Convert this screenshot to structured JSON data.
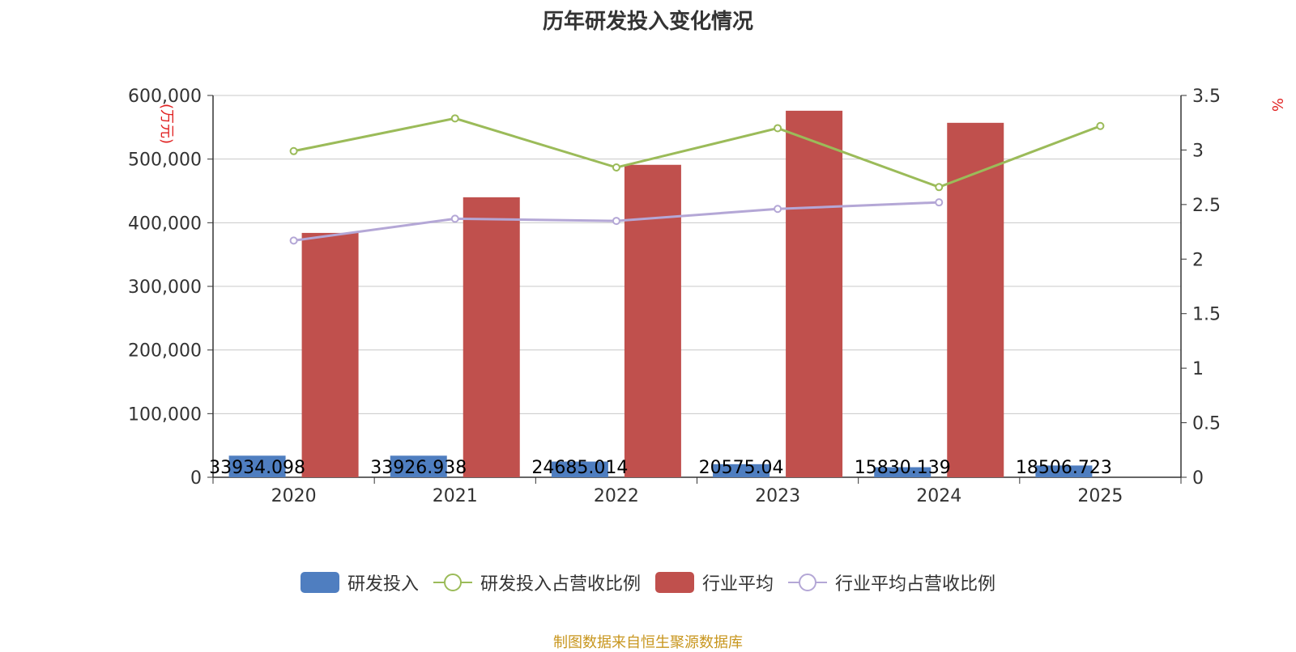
{
  "chart_data": {
    "type": "bar",
    "title": "历年研发投入变化情况",
    "categories": [
      "2020",
      "2021",
      "2022",
      "2023",
      "2024",
      "2025"
    ],
    "y_left": {
      "unit": "(万元)",
      "min": 0,
      "max": 600000,
      "ticks": [
        0,
        100000,
        200000,
        300000,
        400000,
        500000,
        600000
      ]
    },
    "y_right": {
      "unit": "%",
      "min": 0,
      "max": 3.5,
      "ticks": [
        0,
        0.5,
        1,
        1.5,
        2,
        2.5,
        3,
        3.5
      ]
    },
    "grid": true,
    "legend_position": "bottom",
    "series": [
      {
        "name": "研发投入",
        "type": "bar",
        "axis": "left",
        "color": "#4f7ec0",
        "values": [
          33934.098,
          33926.938,
          24685.014,
          20575.04,
          15830.139,
          18506.723
        ],
        "labels": [
          "33934.098",
          "33926.938",
          "24685.014",
          "20575.04",
          "15830.139",
          "18506.723"
        ]
      },
      {
        "name": "研发投入占营收比例",
        "type": "line",
        "axis": "right",
        "color": "#9bbb59",
        "values": [
          2.99,
          3.29,
          2.84,
          3.2,
          2.66,
          3.22
        ]
      },
      {
        "name": "行业平均",
        "type": "bar",
        "axis": "left",
        "color": "#c0504d",
        "values": [
          384000,
          440000,
          491000,
          576000,
          557000,
          null
        ]
      },
      {
        "name": "行业平均占营收比例",
        "type": "line",
        "axis": "right",
        "color": "#b4a7d6",
        "values": [
          2.17,
          2.37,
          2.35,
          2.46,
          2.52,
          null
        ]
      }
    ]
  },
  "source_note": "制图数据来自恒生聚源数据库"
}
